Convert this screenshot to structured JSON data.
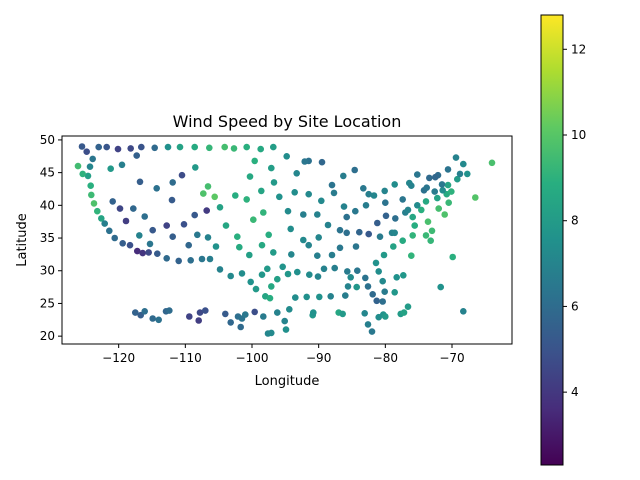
{
  "chart_data": {
    "type": "scatter",
    "title": "Wind Speed by Site Location",
    "xlabel": "Longitude",
    "ylabel": "Latitude",
    "xlim": [
      -128.5,
      -61.0
    ],
    "ylim": [
      18.8,
      50.6
    ],
    "xticks": [
      -120,
      -110,
      -100,
      -90,
      -80,
      -70
    ],
    "xtick_labels": [
      "−120",
      "−110",
      "−100",
      "−90",
      "−80",
      "−70"
    ],
    "yticks": [
      20,
      25,
      30,
      35,
      40,
      45,
      50
    ],
    "ytick_labels": [
      "20",
      "25",
      "30",
      "35",
      "40",
      "45",
      "50"
    ],
    "grid": false,
    "colormap": "viridis",
    "colorbar": {
      "range": [
        2.3,
        12.8
      ],
      "ticks": [
        4,
        6,
        8,
        10,
        12
      ],
      "tick_labels": [
        "4",
        "6",
        "8",
        "10",
        "12"
      ]
    },
    "points": [
      [
        -125.5,
        49.0,
        5.2
      ],
      [
        -124.8,
        48.2,
        4.8
      ],
      [
        -123.9,
        47.1,
        6.4
      ],
      [
        -124.3,
        45.9,
        7.1
      ],
      [
        -124.6,
        44.5,
        8.2
      ],
      [
        -124.2,
        43.0,
        8.9
      ],
      [
        -124.1,
        41.6,
        9.4
      ],
      [
        -123.7,
        40.3,
        9.8
      ],
      [
        -123.2,
        39.1,
        9.1
      ],
      [
        -122.6,
        38.0,
        8.4
      ],
      [
        -122.1,
        37.2,
        6.8
      ],
      [
        -121.4,
        36.1,
        6.2
      ],
      [
        -120.6,
        35.0,
        5.9
      ],
      [
        -119.4,
        34.2,
        5.4
      ],
      [
        -118.3,
        33.9,
        4.9
      ],
      [
        -117.2,
        33.0,
        3.6
      ],
      [
        -116.4,
        32.7,
        3.9
      ],
      [
        -115.5,
        32.8,
        4.6
      ],
      [
        -114.2,
        32.6,
        5.3
      ],
      [
        -112.8,
        31.9,
        5.9
      ],
      [
        -111.0,
        31.5,
        5.6
      ],
      [
        -109.2,
        31.6,
        6.1
      ],
      [
        -107.5,
        31.8,
        6.4
      ],
      [
        -106.3,
        31.8,
        6.7
      ],
      [
        -104.8,
        30.2,
        6.9
      ],
      [
        -103.2,
        29.2,
        7.2
      ],
      [
        -101.5,
        29.6,
        7.4
      ],
      [
        -100.2,
        28.3,
        7.6
      ],
      [
        -99.4,
        27.2,
        7.9
      ],
      [
        -98.0,
        26.1,
        8.4
      ],
      [
        -97.3,
        25.8,
        8.8
      ],
      [
        -97.1,
        27.6,
        8.6
      ],
      [
        -96.2,
        28.7,
        8.2
      ],
      [
        -94.6,
        29.5,
        7.8
      ],
      [
        -93.2,
        29.8,
        7.5
      ],
      [
        -91.4,
        29.4,
        7.3
      ],
      [
        -90.1,
        29.1,
        7.0
      ],
      [
        -89.2,
        30.3,
        6.9
      ],
      [
        -87.6,
        30.4,
        6.8
      ],
      [
        -85.7,
        29.9,
        6.6
      ],
      [
        -84.2,
        30.0,
        6.4
      ],
      [
        -83.0,
        28.9,
        6.3
      ],
      [
        -82.6,
        27.6,
        6.2
      ],
      [
        -81.9,
        26.4,
        5.9
      ],
      [
        -81.3,
        25.4,
        5.6
      ],
      [
        -80.4,
        25.3,
        6.1
      ],
      [
        -80.1,
        26.8,
        6.6
      ],
      [
        -80.4,
        28.4,
        7.2
      ],
      [
        -81.0,
        29.9,
        7.4
      ],
      [
        -81.4,
        31.2,
        7.6
      ],
      [
        -80.2,
        32.4,
        7.9
      ],
      [
        -78.8,
        33.7,
        8.3
      ],
      [
        -77.4,
        34.6,
        8.7
      ],
      [
        -75.9,
        35.4,
        9.1
      ],
      [
        -75.6,
        36.9,
        8.8
      ],
      [
        -75.9,
        38.2,
        8.5
      ],
      [
        -74.6,
        39.3,
        8.9
      ],
      [
        -73.9,
        40.6,
        8.6
      ],
      [
        -72.2,
        41.1,
        8.3
      ],
      [
        -70.8,
        41.7,
        8.7
      ],
      [
        -70.1,
        42.1,
        9.0
      ],
      [
        -70.6,
        43.1,
        8.4
      ],
      [
        -69.2,
        44.0,
        8.0
      ],
      [
        -67.7,
        44.8,
        7.6
      ],
      [
        -68.3,
        46.3,
        7.2
      ],
      [
        -69.4,
        47.3,
        6.9
      ],
      [
        -70.6,
        45.5,
        6.3
      ],
      [
        -72.1,
        44.6,
        6.0
      ],
      [
        -73.4,
        44.2,
        5.9
      ],
      [
        -75.2,
        44.7,
        6.4
      ],
      [
        -76.4,
        43.4,
        7.1
      ],
      [
        -78.6,
        43.2,
        7.4
      ],
      [
        -80.1,
        42.2,
        7.0
      ],
      [
        -82.5,
        41.7,
        6.8
      ],
      [
        -83.3,
        42.6,
        6.5
      ],
      [
        -84.6,
        45.4,
        6.1
      ],
      [
        -86.3,
        44.5,
        6.7
      ],
      [
        -87.7,
        41.9,
        6.6
      ],
      [
        -88.0,
        43.1,
        6.3
      ],
      [
        -89.5,
        46.6,
        5.8
      ],
      [
        -91.5,
        46.8,
        6.2
      ],
      [
        -92.1,
        46.7,
        6.4
      ],
      [
        -93.3,
        44.9,
        7.1
      ],
      [
        -94.8,
        47.5,
        7.4
      ],
      [
        -96.8,
        48.9,
        8.1
      ],
      [
        -98.7,
        48.6,
        8.6
      ],
      [
        -100.8,
        48.9,
        8.9
      ],
      [
        -102.7,
        48.7,
        9.3
      ],
      [
        -104.1,
        48.9,
        9.6
      ],
      [
        -106.4,
        48.8,
        9.2
      ],
      [
        -108.6,
        48.9,
        8.7
      ],
      [
        -110.8,
        48.9,
        8.3
      ],
      [
        -112.6,
        48.9,
        7.5
      ],
      [
        -114.6,
        48.8,
        5.9
      ],
      [
        -116.6,
        48.9,
        5.0
      ],
      [
        -118.2,
        48.7,
        4.6
      ],
      [
        -120.1,
        48.6,
        4.4
      ],
      [
        -121.8,
        48.9,
        5.1
      ],
      [
        -123.0,
        48.9,
        5.6
      ],
      [
        -117.3,
        47.6,
        5.5
      ],
      [
        -119.5,
        46.2,
        6.8
      ],
      [
        -121.2,
        45.6,
        7.9
      ],
      [
        -116.8,
        43.6,
        5.4
      ],
      [
        -114.3,
        42.6,
        6.2
      ],
      [
        -112.0,
        40.8,
        5.3
      ],
      [
        -111.9,
        43.5,
        6.0
      ],
      [
        -110.5,
        44.6,
        4.7
      ],
      [
        -108.5,
        45.8,
        7.9
      ],
      [
        -106.6,
        42.9,
        9.6
      ],
      [
        -105.6,
        41.3,
        10.1
      ],
      [
        -107.3,
        41.8,
        9.8
      ],
      [
        -104.8,
        39.7,
        8.3
      ],
      [
        -106.8,
        39.2,
        4.1
      ],
      [
        -108.6,
        38.5,
        5.2
      ],
      [
        -110.2,
        37.1,
        4.9
      ],
      [
        -111.9,
        35.2,
        5.4
      ],
      [
        -112.8,
        36.9,
        4.4
      ],
      [
        -114.9,
        36.2,
        5.2
      ],
      [
        -116.1,
        38.3,
        6.1
      ],
      [
        -117.8,
        39.5,
        5.8
      ],
      [
        -119.8,
        39.5,
        4.5
      ],
      [
        -120.9,
        40.6,
        5.6
      ],
      [
        -118.9,
        37.6,
        4.2
      ],
      [
        -116.9,
        35.4,
        6.9
      ],
      [
        -115.3,
        34.1,
        6.4
      ],
      [
        -109.5,
        33.9,
        5.8
      ],
      [
        -108.2,
        35.5,
        6.5
      ],
      [
        -106.6,
        35.1,
        6.9
      ],
      [
        -105.4,
        33.7,
        7.6
      ],
      [
        -103.9,
        36.9,
        8.5
      ],
      [
        -102.2,
        35.2,
        8.9
      ],
      [
        -101.9,
        33.6,
        8.7
      ],
      [
        -100.4,
        32.4,
        8.2
      ],
      [
        -98.5,
        33.9,
        8.6
      ],
      [
        -97.5,
        35.5,
        8.8
      ],
      [
        -99.8,
        37.8,
        9.3
      ],
      [
        -98.3,
        38.9,
        9.1
      ],
      [
        -100.8,
        40.9,
        9.0
      ],
      [
        -102.5,
        41.5,
        8.8
      ],
      [
        -98.6,
        42.2,
        8.4
      ],
      [
        -100.3,
        44.4,
        8.6
      ],
      [
        -97.1,
        45.7,
        8.1
      ],
      [
        -99.6,
        46.8,
        8.9
      ],
      [
        -96.7,
        43.5,
        7.9
      ],
      [
        -95.9,
        41.3,
        7.6
      ],
      [
        -93.6,
        42.0,
        7.4
      ],
      [
        -91.5,
        41.7,
        7.2
      ],
      [
        -94.6,
        39.1,
        7.3
      ],
      [
        -92.3,
        38.6,
        6.8
      ],
      [
        -90.2,
        38.6,
        6.9
      ],
      [
        -89.6,
        40.7,
        7.2
      ],
      [
        -86.2,
        39.8,
        6.9
      ],
      [
        -84.5,
        39.1,
        6.5
      ],
      [
        -85.8,
        38.2,
        6.2
      ],
      [
        -82.9,
        40.0,
        6.7
      ],
      [
        -81.7,
        41.5,
        7.1
      ],
      [
        -80.0,
        40.4,
        6.3
      ],
      [
        -79.9,
        38.4,
        5.6
      ],
      [
        -81.2,
        37.3,
        5.4
      ],
      [
        -78.5,
        38.0,
        6.1
      ],
      [
        -77.0,
        38.9,
        6.8
      ],
      [
        -76.6,
        39.3,
        7.0
      ],
      [
        -77.4,
        40.9,
        6.4
      ],
      [
        -75.2,
        40.0,
        7.3
      ],
      [
        -74.2,
        42.3,
        6.2
      ],
      [
        -76.1,
        43.0,
        6.9
      ],
      [
        -73.8,
        42.7,
        6.4
      ],
      [
        -72.6,
        42.1,
        6.6
      ],
      [
        -71.4,
        42.3,
        7.4
      ],
      [
        -71.5,
        43.2,
        6.5
      ],
      [
        -72.5,
        44.3,
        5.8
      ],
      [
        -68.8,
        44.8,
        6.8
      ],
      [
        -85.8,
        35.8,
        6.1
      ],
      [
        -86.8,
        36.2,
        6.3
      ],
      [
        -83.9,
        35.9,
        5.7
      ],
      [
        -82.5,
        35.6,
        5.2
      ],
      [
        -80.8,
        35.2,
        6.6
      ],
      [
        -79.0,
        35.8,
        6.9
      ],
      [
        -78.6,
        35.8,
        7.1
      ],
      [
        -84.4,
        33.7,
        6.4
      ],
      [
        -86.8,
        33.5,
        6.5
      ],
      [
        -88.0,
        32.4,
        6.7
      ],
      [
        -90.2,
        32.3,
        6.8
      ],
      [
        -91.5,
        33.9,
        7.0
      ],
      [
        -92.3,
        34.7,
        7.2
      ],
      [
        -94.2,
        36.4,
        7.4
      ],
      [
        -90.0,
        35.1,
        7.1
      ],
      [
        -88.6,
        37.0,
        6.9
      ],
      [
        -96.8,
        32.8,
        8.0
      ],
      [
        -95.4,
        30.6,
        7.7
      ],
      [
        -97.7,
        30.3,
        7.9
      ],
      [
        -98.5,
        29.4,
        7.8
      ],
      [
        -94.1,
        32.5,
        7.1
      ],
      [
        -117.5,
        23.6,
        5.6
      ],
      [
        -116.7,
        23.2,
        5.4
      ],
      [
        -116.1,
        23.8,
        6.1
      ],
      [
        -114.9,
        22.7,
        5.9
      ],
      [
        -114.0,
        22.5,
        6.2
      ],
      [
        -112.9,
        23.8,
        5.7
      ],
      [
        -112.4,
        23.9,
        6.0
      ],
      [
        -109.4,
        23.0,
        4.4
      ],
      [
        -108.0,
        22.4,
        4.2
      ],
      [
        -107.8,
        23.6,
        4.6
      ],
      [
        -107.0,
        23.9,
        4.9
      ],
      [
        -104.0,
        23.4,
        5.3
      ],
      [
        -103.2,
        22.1,
        5.8
      ],
      [
        -102.1,
        23.0,
        6.1
      ],
      [
        -101.5,
        22.7,
        6.3
      ],
      [
        -101.0,
        23.3,
        6.5
      ],
      [
        -101.7,
        21.4,
        5.9
      ],
      [
        -99.6,
        23.7,
        4.8
      ],
      [
        -98.3,
        23.0,
        6.6
      ],
      [
        -97.6,
        20.4,
        7.1
      ],
      [
        -97.1,
        20.5,
        7.2
      ],
      [
        -96.2,
        23.6,
        6.9
      ],
      [
        -95.1,
        22.3,
        7.0
      ],
      [
        -94.9,
        21.0,
        7.5
      ],
      [
        -94.4,
        24.1,
        7.3
      ],
      [
        -93.5,
        25.9,
        7.4
      ],
      [
        -91.8,
        26.0,
        7.5
      ],
      [
        -90.9,
        23.2,
        7.8
      ],
      [
        -90.8,
        23.6,
        7.6
      ],
      [
        -89.9,
        26.0,
        7.6
      ],
      [
        -88.2,
        26.1,
        6.9
      ],
      [
        -87.0,
        23.6,
        8.5
      ],
      [
        -86.4,
        23.4,
        7.9
      ],
      [
        -86.0,
        26.2,
        6.7
      ],
      [
        -85.6,
        27.6,
        7.0
      ],
      [
        -85.2,
        29.0,
        7.3
      ],
      [
        -84.3,
        27.5,
        7.8
      ],
      [
        -83.1,
        23.5,
        7.1
      ],
      [
        -82.6,
        21.8,
        6.8
      ],
      [
        -82.0,
        20.7,
        6.5
      ],
      [
        -81.0,
        22.9,
        7.4
      ],
      [
        -80.3,
        23.3,
        7.6
      ],
      [
        -80.0,
        23.0,
        7.9
      ],
      [
        -78.6,
        26.7,
        7.8
      ],
      [
        -77.7,
        23.4,
        8.0
      ],
      [
        -77.2,
        23.6,
        8.3
      ],
      [
        -78.3,
        29.0,
        7.6
      ],
      [
        -77.3,
        29.3,
        7.8
      ],
      [
        -76.6,
        24.5,
        8.0
      ],
      [
        -76.1,
        32.3,
        9.1
      ],
      [
        -73.9,
        35.4,
        9.3
      ],
      [
        -73.6,
        37.5,
        9.7
      ],
      [
        -73.2,
        34.6,
        9.2
      ],
      [
        -73.0,
        36.1,
        9.4
      ],
      [
        -72.0,
        39.5,
        9.6
      ],
      [
        -71.1,
        38.6,
        9.8
      ],
      [
        -70.5,
        40.4,
        9.3
      ],
      [
        -69.9,
        32.1,
        8.9
      ],
      [
        -71.7,
        27.5,
        7.6
      ],
      [
        -68.3,
        23.8,
        6.9
      ],
      [
        -66.5,
        41.2,
        9.9
      ],
      [
        -64.0,
        46.5,
        9.7
      ],
      [
        -126.1,
        46.0,
        9.5
      ],
      [
        -125.4,
        44.8,
        9.0
      ]
    ]
  }
}
